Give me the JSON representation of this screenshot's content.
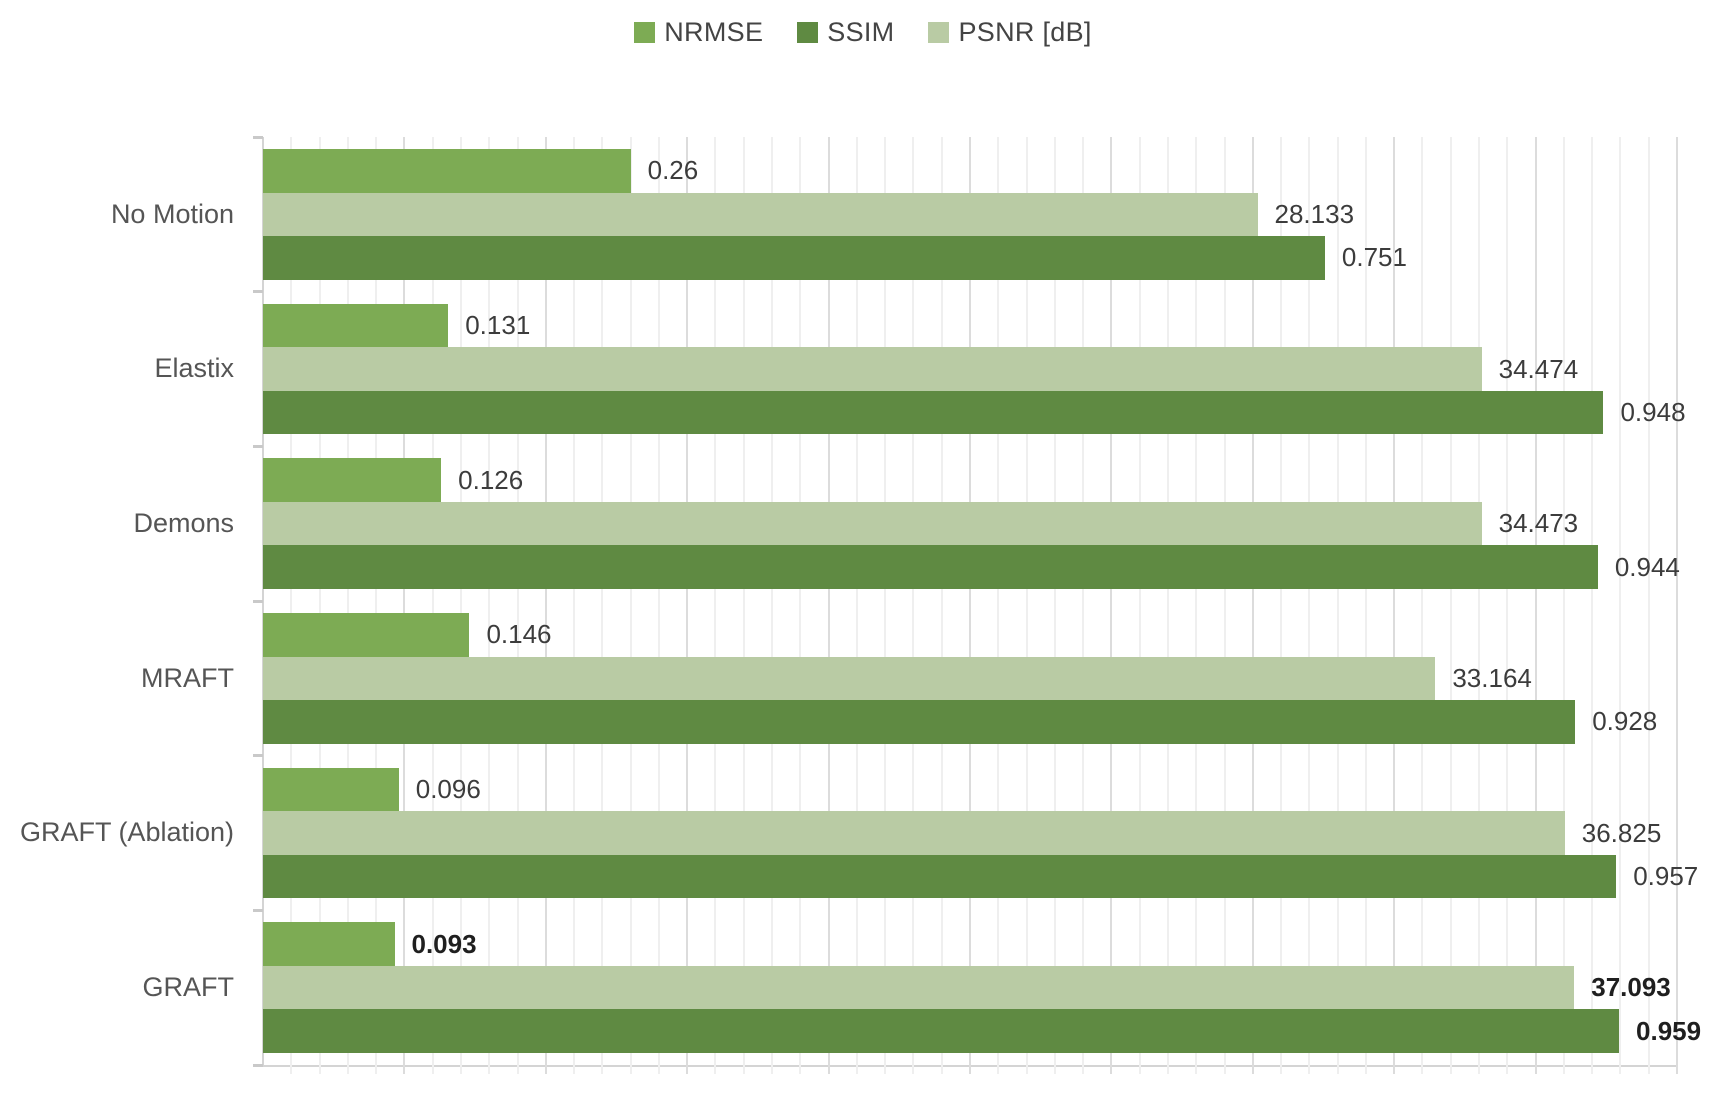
{
  "chart_data": {
    "type": "bar",
    "orientation": "horizontal",
    "title": "",
    "categories": [
      "No Motion",
      "Elastix",
      "Demons",
      "MRAFT",
      "GRAFT (Ablation)",
      "GRAFT"
    ],
    "series": [
      {
        "name": "NRMSE",
        "color": "#7dab54",
        "axis_min": 0,
        "axis_max": 1,
        "values": [
          0.26,
          0.131,
          0.126,
          0.146,
          0.096,
          0.093
        ],
        "labels": [
          "0.26",
          "0.131",
          "0.126",
          "0.146",
          "0.096",
          "0.093"
        ]
      },
      {
        "name": "SSIM",
        "color": "#5f8a42",
        "axis_min": 0,
        "axis_max": 1,
        "values": [
          0.751,
          0.948,
          0.944,
          0.928,
          0.957,
          0.959
        ],
        "labels": [
          "0.751",
          "0.948",
          "0.944",
          "0.928",
          "0.957",
          "0.959"
        ]
      },
      {
        "name": "PSNR [dB]",
        "color": "#b9cba4",
        "axis_min": 0,
        "axis_max": 40,
        "values": [
          28.133,
          34.474,
          34.473,
          33.164,
          36.825,
          37.093
        ],
        "labels": [
          "28.133",
          "34.474",
          "34.473",
          "33.164",
          "36.825",
          "37.093"
        ]
      }
    ],
    "bar_order_top_to_bottom": [
      "NRMSE",
      "PSNR [dB]",
      "SSIM"
    ],
    "emphasized_category": "GRAFT",
    "legend_position": "top-center",
    "legend_order": [
      "NRMSE",
      "SSIM",
      "PSNR [dB]"
    ],
    "grid": {
      "on": true,
      "minor_step_fraction": 0.02,
      "major_every_nth": 5
    },
    "value_labels": "outside-end"
  },
  "colors": {
    "grid_minor": "#efefef",
    "grid_major": "#dcdcdc",
    "axis_line": "#d4d4d4",
    "category_tick": "#c9c9c9",
    "value_text": "#3c3c3c",
    "category_text": "#555555",
    "legend_text": "#444444",
    "background": "#ffffff"
  }
}
